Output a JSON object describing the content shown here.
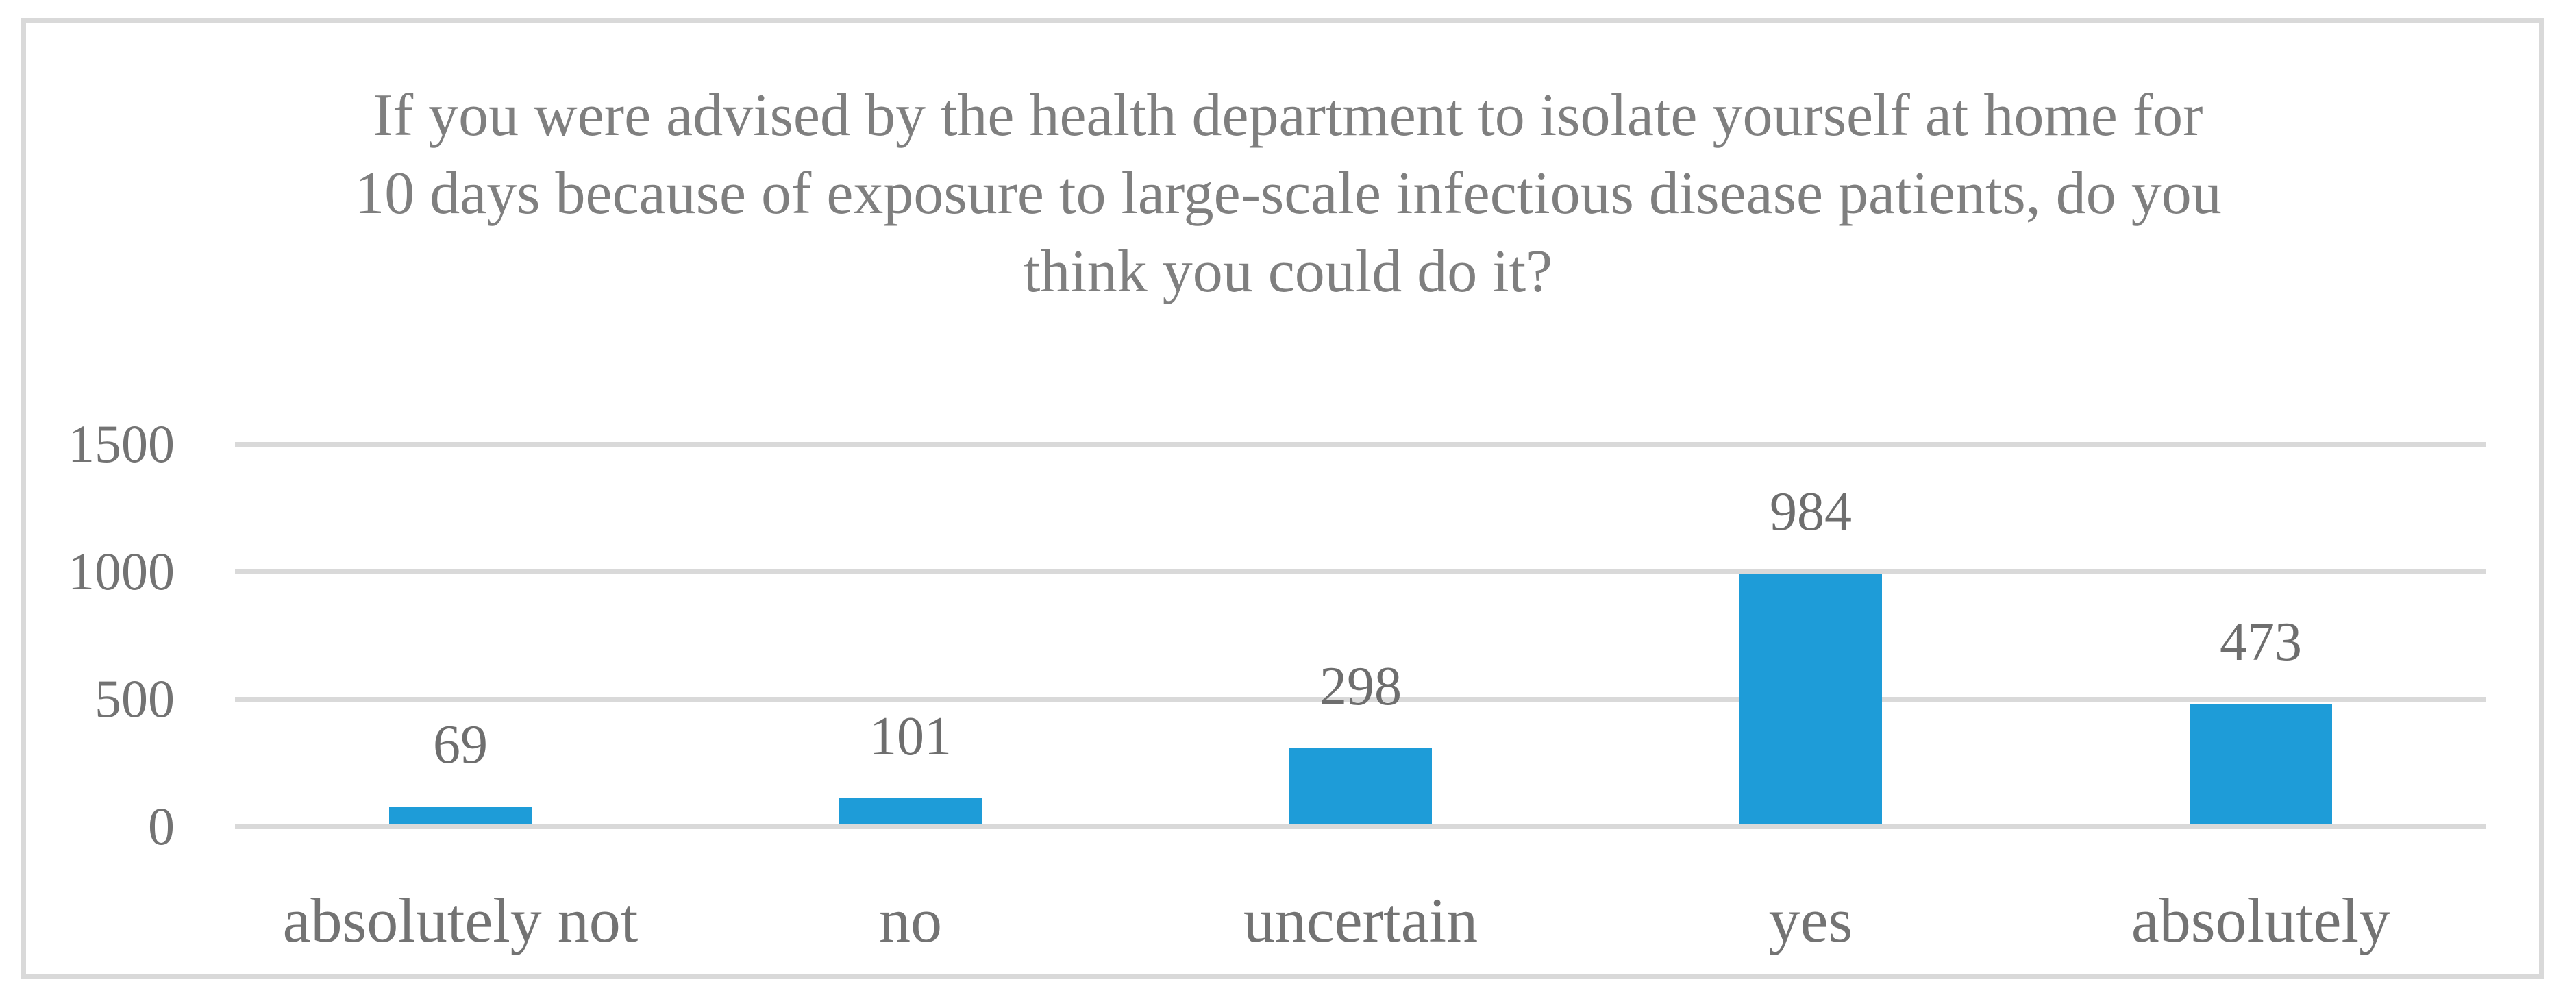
{
  "chart_data": {
    "type": "bar",
    "title": "If you were advised by the health department to isolate yourself at home for 10 days because of exposure to large-scale infectious disease patients, do you think you could do it?",
    "title_lines": [
      "If you were advised by the health department to isolate yourself at home for",
      "10 days because of exposure to large-scale infectious disease patients, do you",
      "think you could do it?"
    ],
    "categories": [
      "absolutely not",
      "no",
      "uncertain",
      "yes",
      "absolutely"
    ],
    "values": [
      69,
      101,
      298,
      984,
      473
    ],
    "data_labels": [
      "69",
      "101",
      "298",
      "984",
      "473"
    ],
    "yticks": [
      0,
      500,
      1000,
      1500
    ],
    "ylim": [
      0,
      1500
    ],
    "xlabel": "",
    "ylabel": "",
    "grid": true,
    "legend": false,
    "colors": {
      "bar": "#1E9CD8",
      "gridline": "#D9D9D9",
      "frame_border": "#D9D9D9",
      "title_text": "#7F7F7F",
      "axis_text": "#737373",
      "value_label_text": "#6E6E6E",
      "background": "#FFFFFF"
    }
  }
}
